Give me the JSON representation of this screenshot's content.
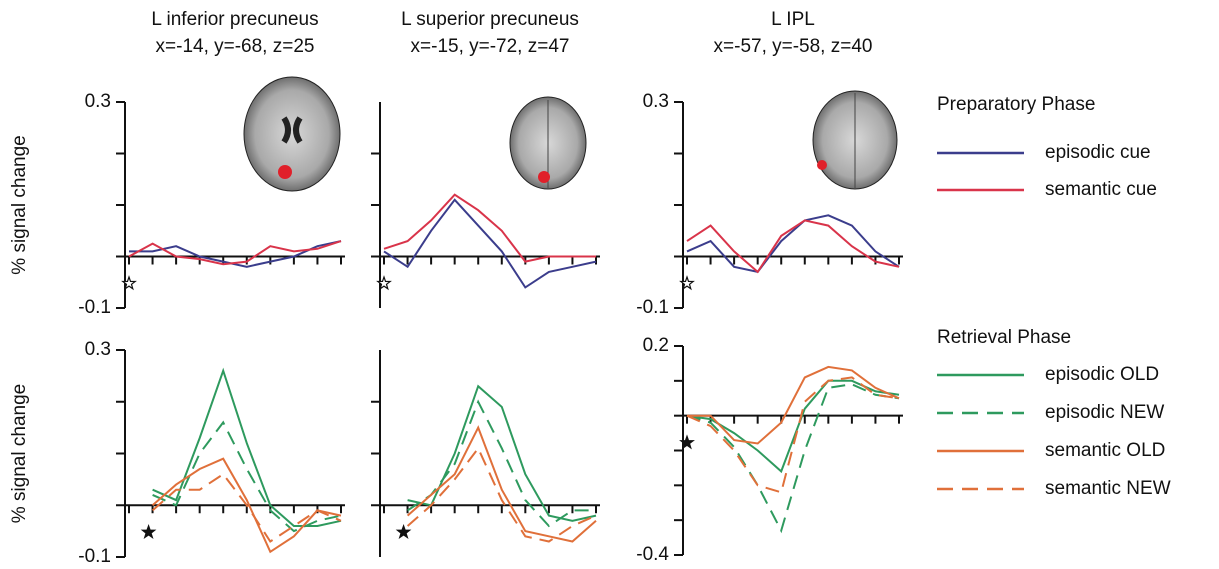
{
  "chart_data": [
    {
      "type": "line",
      "title": "L inferior precuneus",
      "subtitle": "x=-14, y=-68, z=25",
      "ylabel": "% signal change",
      "legend_title": "Preparatory Phase",
      "categories": [
        null,
        null,
        null,
        null,
        null,
        null,
        null,
        null,
        null,
        null
      ],
      "ylim": [
        -0.1,
        0.3
      ],
      "yticks": [
        -0.1,
        0.3
      ],
      "yminorticks": [
        0,
        0.1,
        0.2
      ],
      "series": [
        {
          "name": "episodic cue",
          "color": "#3b3d8c",
          "values": [
            0.01,
            0.01,
            0.02,
            0.0,
            -0.01,
            -0.02,
            -0.01,
            0.0,
            0.02,
            0.03
          ]
        },
        {
          "name": "semantic cue",
          "color": "#d9344a",
          "values": [
            0.0,
            0.025,
            0.0,
            -0.005,
            -0.015,
            -0.01,
            0.02,
            0.01,
            0.015,
            0.03
          ]
        }
      ]
    },
    {
      "type": "line",
      "title": "L superior precuneus",
      "subtitle": "x=-15, y=-72, z=47",
      "categories": [
        null,
        null,
        null,
        null,
        null,
        null,
        null,
        null,
        null,
        null
      ],
      "ylim": [
        -0.1,
        0.3
      ],
      "yticks": [],
      "yminorticks": [
        0,
        0.1,
        0.2
      ],
      "series": [
        {
          "name": "episodic cue",
          "color": "#3b3d8c",
          "values": [
            0.01,
            -0.02,
            0.05,
            0.11,
            0.06,
            0.01,
            -0.06,
            -0.03,
            -0.02,
            -0.01
          ]
        },
        {
          "name": "semantic cue",
          "color": "#d9344a",
          "values": [
            0.015,
            0.03,
            0.07,
            0.12,
            0.09,
            0.05,
            -0.01,
            0.0,
            0.0,
            0.0
          ]
        }
      ]
    },
    {
      "type": "line",
      "title": "L IPL",
      "subtitle": "x=-57, y=-58, z=40",
      "categories": [
        null,
        null,
        null,
        null,
        null,
        null,
        null,
        null,
        null,
        null
      ],
      "ylim": [
        -0.1,
        0.3
      ],
      "yticks": [
        -0.1,
        0.3
      ],
      "yminorticks": [
        0,
        0.1,
        0.2
      ],
      "series": [
        {
          "name": "episodic cue",
          "color": "#3b3d8c",
          "values": [
            0.01,
            0.03,
            -0.02,
            -0.03,
            0.03,
            0.07,
            0.08,
            0.06,
            0.01,
            -0.02
          ]
        },
        {
          "name": "semantic cue",
          "color": "#d9344a",
          "values": [
            0.03,
            0.06,
            0.01,
            -0.03,
            0.04,
            0.07,
            0.06,
            0.02,
            -0.01,
            -0.02
          ]
        }
      ]
    },
    {
      "type": "line",
      "ylabel": "% signal change",
      "legend_title": "Retrieval Phase",
      "categories": [
        null,
        null,
        null,
        null,
        null,
        null,
        null,
        null,
        null,
        null
      ],
      "ylim": [
        -0.1,
        0.3
      ],
      "yticks": [
        -0.1,
        0.3
      ],
      "yminorticks": [
        0,
        0.1,
        0.2
      ],
      "series": [
        {
          "name": "episodic OLD",
          "color": "#2e9a5e",
          "dash": false,
          "values": [
            null,
            0.03,
            0.01,
            0.13,
            0.26,
            0.12,
            0.0,
            -0.04,
            -0.04,
            -0.03
          ]
        },
        {
          "name": "episodic NEW",
          "color": "#2e9a5e",
          "dash": true,
          "values": [
            null,
            0.02,
            0.0,
            0.1,
            0.16,
            0.07,
            -0.01,
            -0.05,
            -0.03,
            -0.02
          ]
        },
        {
          "name": "semantic OLD",
          "color": "#e0703a",
          "dash": false,
          "values": [
            null,
            0.0,
            0.04,
            0.07,
            0.09,
            0.01,
            -0.09,
            -0.06,
            -0.01,
            -0.02
          ]
        },
        {
          "name": "semantic NEW",
          "color": "#e0703a",
          "dash": true,
          "values": [
            null,
            -0.01,
            0.03,
            0.03,
            0.06,
            0.0,
            -0.07,
            -0.04,
            -0.01,
            -0.03
          ]
        }
      ]
    },
    {
      "type": "line",
      "categories": [
        null,
        null,
        null,
        null,
        null,
        null,
        null,
        null,
        null,
        null
      ],
      "ylim": [
        -0.1,
        0.3
      ],
      "yticks": [],
      "yminorticks": [
        0,
        0.1,
        0.2
      ],
      "series": [
        {
          "name": "episodic OLD",
          "color": "#2e9a5e",
          "dash": false,
          "values": [
            null,
            0.01,
            0.0,
            0.1,
            0.23,
            0.19,
            0.06,
            -0.02,
            -0.03,
            -0.02
          ]
        },
        {
          "name": "episodic NEW",
          "color": "#2e9a5e",
          "dash": true,
          "values": [
            null,
            -0.01,
            0.02,
            0.08,
            0.2,
            0.11,
            0.01,
            -0.04,
            -0.01,
            -0.01
          ]
        },
        {
          "name": "semantic OLD",
          "color": "#e0703a",
          "dash": false,
          "values": [
            null,
            -0.02,
            0.02,
            0.06,
            0.15,
            0.03,
            -0.05,
            -0.06,
            -0.07,
            -0.03
          ]
        },
        {
          "name": "semantic NEW",
          "color": "#e0703a",
          "dash": true,
          "values": [
            null,
            -0.04,
            0.0,
            0.05,
            0.11,
            0.01,
            -0.06,
            -0.07,
            -0.04,
            -0.02
          ]
        }
      ]
    },
    {
      "type": "line",
      "categories": [
        null,
        null,
        null,
        null,
        null,
        null,
        null,
        null,
        null,
        null
      ],
      "ylim": [
        -0.4,
        0.2
      ],
      "yticks": [
        -0.4,
        0.2
      ],
      "yminorticks": [
        -0.3,
        -0.2,
        -0.1,
        0,
        0.1
      ],
      "series": [
        {
          "name": "episodic OLD",
          "color": "#2e9a5e",
          "dash": false,
          "values": [
            0.0,
            -0.01,
            -0.05,
            -0.1,
            -0.16,
            0.02,
            0.1,
            0.1,
            0.07,
            0.06
          ]
        },
        {
          "name": "episodic NEW",
          "color": "#2e9a5e",
          "dash": true,
          "values": [
            0.0,
            -0.02,
            -0.09,
            -0.2,
            -0.33,
            -0.1,
            0.08,
            0.09,
            0.06,
            0.05
          ]
        },
        {
          "name": "semantic OLD",
          "color": "#e0703a",
          "dash": false,
          "values": [
            0.0,
            0.0,
            -0.07,
            -0.08,
            -0.02,
            0.11,
            0.14,
            0.13,
            0.08,
            0.05
          ]
        },
        {
          "name": "semantic NEW",
          "color": "#e0703a",
          "dash": true,
          "values": [
            0.0,
            -0.03,
            -0.1,
            -0.2,
            -0.22,
            0.04,
            0.1,
            0.11,
            0.06,
            0.05
          ]
        }
      ]
    }
  ]
}
